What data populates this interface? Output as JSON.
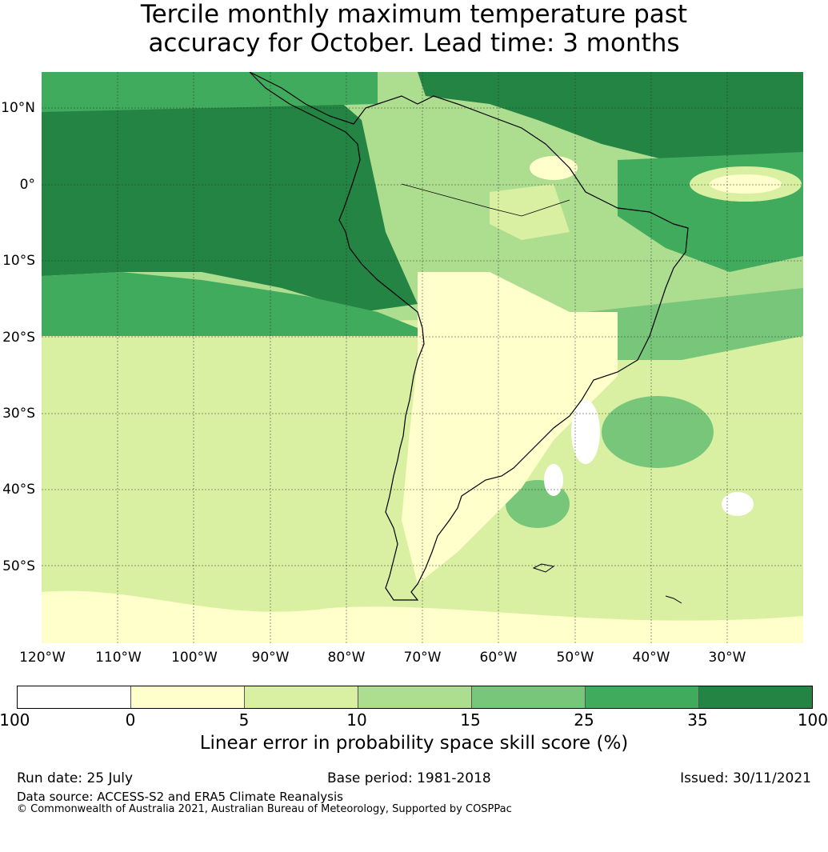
{
  "title_line1": "Tercile monthly maximum temperature past",
  "title_line2": "accuracy for October. Lead time: 3 months",
  "map": {
    "lat_labels": [
      "10°N",
      "0°",
      "10°S",
      "20°S",
      "30°S",
      "40°S",
      "50°S"
    ],
    "lon_labels": [
      "120°W",
      "110°W",
      "100°W",
      "90°W",
      "80°W",
      "70°W",
      "60°W",
      "50°W",
      "40°W",
      "30°W"
    ],
    "region": "South America and surrounding oceans"
  },
  "colorbar": {
    "ticks": [
      "-100",
      "0",
      "5",
      "10",
      "15",
      "25",
      "35",
      "100"
    ],
    "colors": [
      "#ffffff",
      "#ffffcc",
      "#d9f0a3",
      "#addd8e",
      "#78c679",
      "#41ab5d",
      "#238443"
    ],
    "label": "Linear error in probability space skill score (%)"
  },
  "footer": {
    "run_date": "Run date: 25 July",
    "base_period": "Base period: 1981-2018",
    "issued": "Issued: 30/11/2021",
    "data_source": "Data source: ACCESS-S2 and ERA5 Climate Reanalysis",
    "copyright": "© Commonwealth of Australia 2021, Australian Bureau of Meteorology, Supported by COSPPac"
  }
}
